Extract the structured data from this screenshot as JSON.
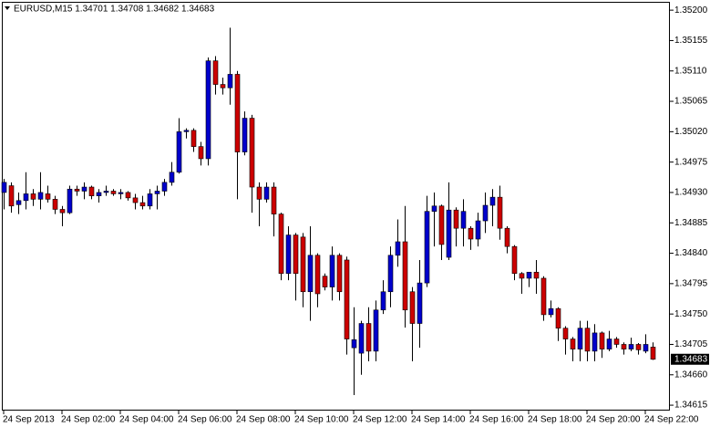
{
  "chart_data": {
    "type": "candlestick",
    "title": "EURUSD,M15  1.34701 1.34708 1.34682 1.34683",
    "up_color": "#0000cc",
    "down_color": "#cc0000",
    "grid": false,
    "ylim": [
      1.34607,
      1.35211
    ],
    "yticks": [
      {
        "value": 1.352,
        "label": "1.35200"
      },
      1.35155,
      {
        "value": 1.3511,
        "label": "1.35110"
      },
      1.35065,
      {
        "value": 1.3502,
        "label": "1.35020"
      },
      1.34975,
      {
        "value": 1.3493,
        "label": "1.34930"
      },
      1.34885,
      {
        "value": 1.3484,
        "label": "1.34840"
      },
      1.34795,
      {
        "value": 1.3475,
        "label": "1.34750"
      },
      1.34705,
      {
        "value": 1.3466,
        "label": "1.34660"
      },
      1.34615
    ],
    "categories": [
      "24 Sep 2013",
      null,
      null,
      null,
      null,
      null,
      null,
      null,
      "24 Sep 02:00",
      null,
      null,
      null,
      null,
      null,
      null,
      null,
      "24 Sep 04:00",
      null,
      null,
      null,
      null,
      null,
      null,
      null,
      "24 Sep 06:00",
      null,
      null,
      null,
      null,
      null,
      null,
      null,
      "24 Sep 08:00",
      null,
      null,
      null,
      null,
      null,
      null,
      null,
      "24 Sep 10:00",
      null,
      null,
      null,
      null,
      null,
      null,
      null,
      "24 Sep 12:00",
      null,
      null,
      null,
      null,
      null,
      null,
      null,
      "24 Sep 14:00",
      null,
      null,
      null,
      null,
      null,
      null,
      null,
      "24 Sep 16:00",
      null,
      null,
      null,
      null,
      null,
      null,
      null,
      "24 Sep 18:00",
      null,
      null,
      null,
      null,
      null,
      null,
      null,
      "24 Sep 20:00",
      null,
      null,
      null,
      null,
      null,
      null,
      null,
      "24 Sep 22:00",
      null
    ],
    "open": [
      1.3493,
      1.3494,
      1.34912,
      1.34918,
      1.34928,
      1.3492,
      1.34928,
      1.3492,
      1.34905,
      1.349,
      1.34935,
      1.34932,
      1.34938,
      1.34925,
      1.3493,
      1.34932,
      1.34928,
      1.3493,
      1.34922,
      1.34915,
      1.3491,
      1.34928,
      1.34932,
      1.34945,
      1.3496,
      1.3502,
      1.35022,
      1.34998,
      1.3498,
      1.35125,
      1.3509,
      1.35085,
      1.35105,
      1.3499,
      1.3504,
      1.34938,
      1.3492,
      1.34938,
      1.34898,
      1.3481,
      1.34867,
      1.34864,
      1.34783,
      1.34837,
      1.34806,
      1.3479,
      1.34837,
      1.3483,
      1.347,
      1.34692,
      1.34736,
      1.34695,
      1.34756,
      1.34783,
      1.34837,
      1.34857,
      1.34783,
      1.34736,
      1.34796,
      1.34902,
      1.3491,
      1.34834,
      1.34904,
      1.34877,
      1.34877,
      1.34861,
      1.34888,
      1.34911,
      1.34923,
      1.34877,
      1.3485,
      1.3481,
      1.34803,
      1.34812,
      1.34803,
      1.34749,
      1.34758,
      1.34729,
      1.34713,
      1.34698,
      1.34729,
      1.34695,
      1.34722,
      1.34698,
      1.34713,
      1.34705,
      1.34698,
      1.34705,
      1.34695,
      1.34701
    ],
    "high": [
      1.3495,
      1.34945,
      1.3493,
      1.3496,
      1.34935,
      1.3496,
      1.3494,
      1.34925,
      1.3491,
      1.3494,
      1.3494,
      1.34945,
      1.3494,
      1.34935,
      1.3494,
      1.34935,
      1.34935,
      1.34932,
      1.34928,
      1.34925,
      1.34935,
      1.3494,
      1.3495,
      1.34975,
      1.3504,
      1.35025,
      1.35025,
      1.35005,
      1.3513,
      1.35132,
      1.351,
      1.35174,
      1.3511,
      1.3505,
      1.35045,
      1.34945,
      1.34945,
      1.34945,
      1.349,
      1.3488,
      1.3487,
      1.3487,
      1.3488,
      1.3484,
      1.3481,
      1.3485,
      1.3484,
      1.34835,
      1.3476,
      1.3474,
      1.3476,
      1.3477,
      1.348,
      1.3485,
      1.3489,
      1.3491,
      1.3479,
      1.3483,
      1.34925,
      1.3493,
      1.34912,
      1.34945,
      1.34908,
      1.3492,
      1.3488,
      1.349,
      1.3493,
      1.34935,
      1.3494,
      1.3488,
      1.34852,
      1.34812,
      1.34806,
      1.3483,
      1.34806,
      1.3477,
      1.3476,
      1.34732,
      1.34716,
      1.3474,
      1.3474,
      1.34735,
      1.34724,
      1.34725,
      1.34716,
      1.34708,
      1.34715,
      1.34707,
      1.3472,
      1.34708
    ],
    "low": [
      1.34905,
      1.349,
      1.34898,
      1.34905,
      1.3491,
      1.34905,
      1.34915,
      1.34898,
      1.3488,
      1.34898,
      1.34925,
      1.3492,
      1.3492,
      1.34915,
      1.34925,
      1.34925,
      1.3492,
      1.34918,
      1.34905,
      1.34905,
      1.34905,
      1.34905,
      1.34925,
      1.3494,
      1.34958,
      1.3501,
      1.3499,
      1.3497,
      1.3497,
      1.35075,
      1.35075,
      1.3506,
      1.3492,
      1.34985,
      1.349,
      1.3488,
      1.34915,
      1.34865,
      1.348,
      1.348,
      1.3477,
      1.3476,
      1.3474,
      1.3476,
      1.34785,
      1.3477,
      1.3477,
      1.3469,
      1.3463,
      1.3466,
      1.3468,
      1.3468,
      1.3475,
      1.3476,
      1.3482,
      1.3473,
      1.3468,
      1.347,
      1.3479,
      1.3485,
      1.3483,
      1.3483,
      1.3485,
      1.3485,
      1.34845,
      1.3485,
      1.3487,
      1.3488,
      1.3486,
      1.3484,
      1.348,
      1.3478,
      1.3479,
      1.3478,
      1.3474,
      1.34745,
      1.3471,
      1.3469,
      1.3468,
      1.3468,
      1.3468,
      1.3468,
      1.34685,
      1.34695,
      1.347,
      1.3469,
      1.34695,
      1.3469,
      1.34692,
      1.34682
    ],
    "close": [
      1.34945,
      1.3491,
      1.34918,
      1.34928,
      1.3492,
      1.3493,
      1.3492,
      1.34905,
      1.349,
      1.34935,
      1.34932,
      1.34938,
      1.34925,
      1.3493,
      1.34932,
      1.34928,
      1.3493,
      1.34922,
      1.34915,
      1.3491,
      1.34928,
      1.34932,
      1.34945,
      1.3496,
      1.3502,
      1.35022,
      1.34998,
      1.3498,
      1.35125,
      1.3509,
      1.35085,
      1.35105,
      1.3499,
      1.3504,
      1.34938,
      1.3492,
      1.34938,
      1.34898,
      1.3481,
      1.34867,
      1.3481,
      1.34783,
      1.34837,
      1.3478,
      1.3479,
      1.34837,
      1.34783,
      1.34713,
      1.34712,
      1.34736,
      1.34695,
      1.34756,
      1.34783,
      1.34837,
      1.34857,
      1.34756,
      1.34736,
      1.34796,
      1.34902,
      1.3491,
      1.34853,
      1.34904,
      1.34877,
      1.34902,
      1.34861,
      1.34888,
      1.34911,
      1.34923,
      1.34877,
      1.3485,
      1.3481,
      1.34803,
      1.34812,
      1.34803,
      1.34749,
      1.34758,
      1.34729,
      1.34713,
      1.34698,
      1.34729,
      1.34695,
      1.34722,
      1.34698,
      1.34713,
      1.34705,
      1.34698,
      1.34705,
      1.34697,
      1.34705,
      1.34683
    ]
  }
}
